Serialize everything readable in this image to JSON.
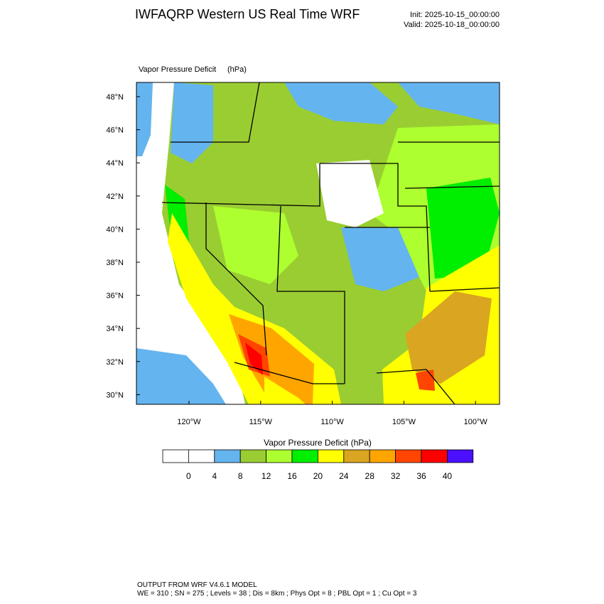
{
  "header": {
    "title": "IWFAQRP Western US Real Time WRF",
    "init": "Init: 2025-10-15_00:00:00",
    "valid": "Valid: 2025-10-18_00:00:00"
  },
  "map": {
    "field_label": "Vapor Pressure Deficit",
    "units": "(hPa)",
    "lat_labels": [
      "48°N",
      "46°N",
      "44°N",
      "42°N",
      "40°N",
      "38°N",
      "36°N",
      "34°N",
      "32°N",
      "30°N"
    ],
    "lon_labels": [
      "120°W",
      "115°W",
      "110°W",
      "105°W",
      "100°W"
    ]
  },
  "colorbar": {
    "title": "Vapor Pressure Deficit  (hPa)",
    "labels": [
      "0",
      "4",
      "8",
      "12",
      "16",
      "20",
      "24",
      "28",
      "32",
      "36",
      "40"
    ],
    "colors": [
      "#ffffff",
      "#ffffff",
      "#64b4f0",
      "#9acd32",
      "#adff2f",
      "#00ee00",
      "#ffff00",
      "#daa520",
      "#ffa500",
      "#ff4500",
      "#ff0000",
      "#4b10ff"
    ]
  },
  "footer": {
    "line1": "OUTPUT FROM WRF V4.6.1 MODEL",
    "line2": "WE = 310 ; SN = 275 ; Levels = 38 ; Dis = 8km ; Phys Opt = 8 ; PBL Opt = 1 ; Cu Opt = 3"
  }
}
